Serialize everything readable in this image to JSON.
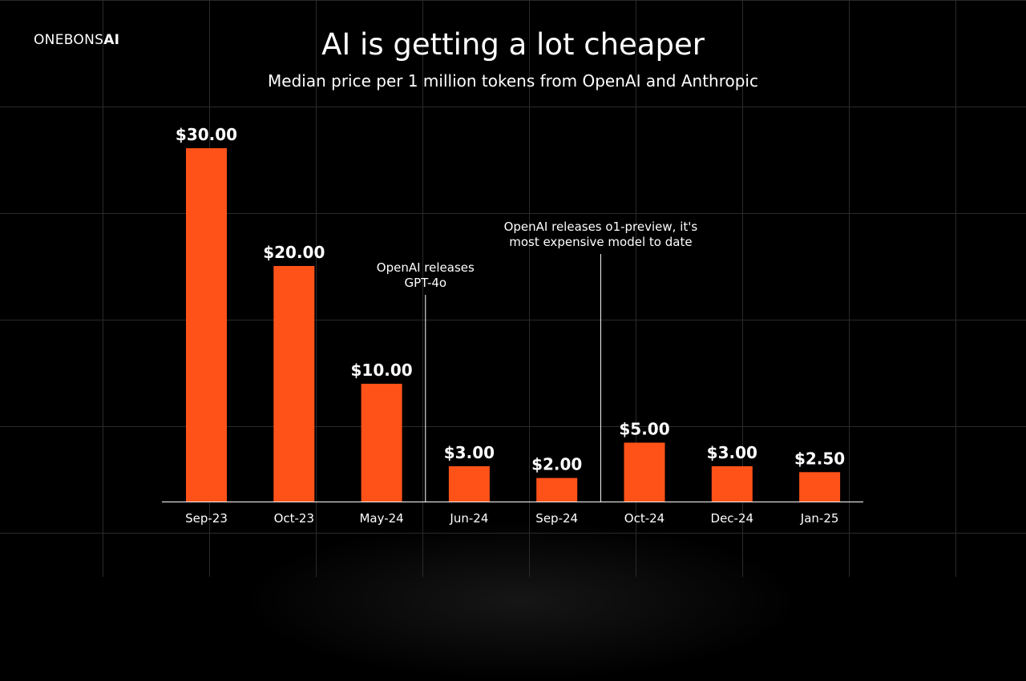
{
  "logo": {
    "prefix": "ONEBONS",
    "suffix": "AI"
  },
  "chart_data": {
    "type": "bar",
    "title": "AI is getting a lot cheaper",
    "subtitle": "Median price per 1 million tokens from OpenAI and Anthropic",
    "categories": [
      "Sep-23",
      "Oct-23",
      "May-24",
      "Jun-24",
      "Sep-24",
      "Oct-24",
      "Dec-24",
      "Jan-25"
    ],
    "values": [
      30,
      20,
      10,
      3,
      2,
      5,
      3,
      2.5
    ],
    "value_labels": [
      "$30.00",
      "$20.00",
      "$10.00",
      "$3.00",
      "$2.00",
      "$5.00",
      "$3.00",
      "$2.50"
    ],
    "ylim": [
      0,
      30
    ],
    "grid": false,
    "bar_color": "#ff5219",
    "annotations": [
      {
        "between": [
          "May-24",
          "Jun-24"
        ],
        "lines": [
          "OpenAI releases",
          "GPT-4o"
        ]
      },
      {
        "between": [
          "Sep-24",
          "Oct-24"
        ],
        "lines": [
          "OpenAI releases o1-preview, it's",
          "most expensive model to date"
        ]
      }
    ]
  }
}
